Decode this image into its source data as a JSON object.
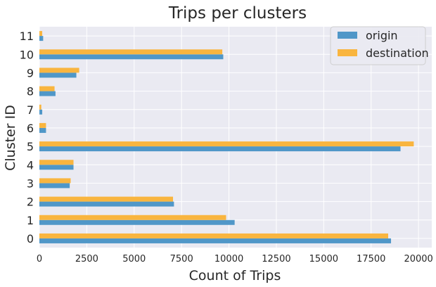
{
  "chart_data": {
    "type": "bar",
    "orientation": "horizontal",
    "title": "Trips per clusters",
    "xlabel": "Count of Trips",
    "ylabel": "Cluster ID",
    "categories": [
      "0",
      "1",
      "2",
      "3",
      "4",
      "5",
      "6",
      "7",
      "8",
      "9",
      "10",
      "11"
    ],
    "series": [
      {
        "name": "origin",
        "color": "#5097c8",
        "values": [
          18550,
          10300,
          7100,
          1600,
          1800,
          19050,
          350,
          150,
          850,
          1950,
          9700,
          200
        ]
      },
      {
        "name": "destination",
        "color": "#f9b53f",
        "values": [
          18400,
          9850,
          7050,
          1650,
          1800,
          19750,
          350,
          100,
          800,
          2100,
          9650,
          150
        ]
      }
    ],
    "xlim": [
      0,
      20700
    ],
    "xticks": [
      0,
      2500,
      5000,
      7500,
      10000,
      12500,
      15000,
      17500,
      20000
    ],
    "xtick_labels": [
      "0",
      "2500",
      "5000",
      "7500",
      "10000",
      "12500",
      "15000",
      "17500",
      "20000"
    ],
    "grid": true,
    "legend_position": "top-right",
    "background_color": "#eaeaf2",
    "grid_color": "#ffffff"
  }
}
